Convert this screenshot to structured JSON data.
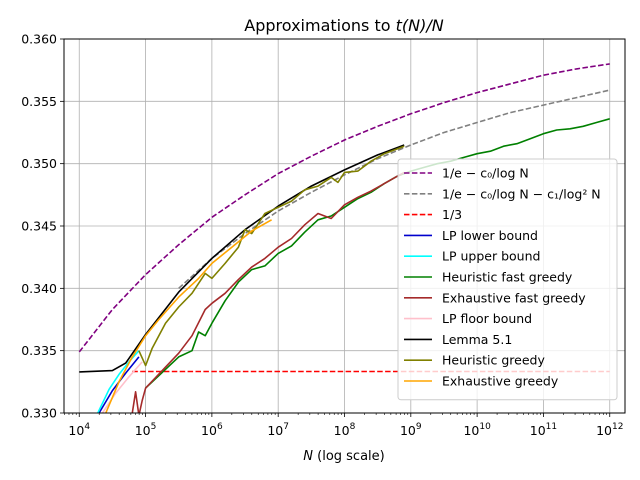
{
  "chart_data": {
    "type": "line",
    "title": "Approximations to t(N)/N",
    "title_parts": {
      "prefix": "Approximations to ",
      "math": "t(N)/N"
    },
    "xlabel": "N (log scale)",
    "xlabel_parts": {
      "math": "N",
      "rest": " (log scale)"
    },
    "ylabel": "",
    "x_scale": "log10",
    "x_exponents": [
      4,
      5,
      6,
      7,
      8,
      9,
      10,
      11,
      12
    ],
    "x_tick_base": "10",
    "xlim": [
      3.77,
      12.23
    ],
    "ylim": [
      0.33,
      0.36
    ],
    "y_ticks": [
      "0.330",
      "0.335",
      "0.340",
      "0.345",
      "0.350",
      "0.355",
      "0.360"
    ],
    "grid": true,
    "legend_position": "right",
    "series": [
      {
        "name": "1/e − c0/log N",
        "legend_label": "1/e − c₀/log N",
        "color": "#800080",
        "dash": "dashed",
        "x": [
          4,
          4.5,
          5,
          5.5,
          6,
          6.5,
          7,
          7.5,
          8,
          8.5,
          9,
          9.5,
          10,
          10.5,
          11,
          11.5,
          12
        ],
        "y": [
          0.3349,
          0.3383,
          0.3411,
          0.3435,
          0.3457,
          0.3475,
          0.3492,
          0.3506,
          0.3519,
          0.353,
          0.354,
          0.3549,
          0.3557,
          0.3564,
          0.3571,
          0.3576,
          0.358
        ]
      },
      {
        "name": "1/e − c0/log N − c1/log² N",
        "legend_label": "1/e − c₀/log N − c₁/log² N",
        "color": "#808080",
        "dash": "dashed",
        "x": [
          5.5,
          6,
          6.5,
          7,
          7.5,
          8,
          8.5,
          9,
          9.5,
          10,
          10.5,
          11,
          11.5,
          12
        ],
        "y": [
          0.34,
          0.3424,
          0.3444,
          0.3462,
          0.3477,
          0.3491,
          0.3504,
          0.3515,
          0.3525,
          0.3533,
          0.3541,
          0.3547,
          0.3553,
          0.3559
        ]
      },
      {
        "name": "1/3",
        "legend_label": "1/3",
        "color": "#ff0000",
        "dash": "dashed",
        "x": [
          4.8,
          12
        ],
        "y": [
          0.33333,
          0.33333
        ]
      },
      {
        "name": "LP lower bound",
        "legend_label": "LP lower bound",
        "color": "#0000cd",
        "dash": "solid",
        "x": [
          4.3,
          4.5,
          4.7,
          4.9
        ],
        "y": [
          0.33,
          0.3318,
          0.3332,
          0.3345
        ]
      },
      {
        "name": "LP upper bound",
        "legend_label": "LP upper bound",
        "color": "#00ffff",
        "dash": "solid",
        "x": [
          4.28,
          4.45,
          4.6,
          4.75,
          4.9
        ],
        "y": [
          0.33,
          0.3319,
          0.3331,
          0.3341,
          0.335
        ]
      },
      {
        "name": "Heuristic fast greedy",
        "legend_label": "Heuristic fast greedy",
        "color": "#008000",
        "dash": "solid",
        "x": [
          5.0,
          5.5,
          5.7,
          5.8,
          5.9,
          6.0,
          6.2,
          6.4,
          6.6,
          6.8,
          7.0,
          7.2,
          7.4,
          7.6,
          7.8,
          8.0,
          8.2,
          8.4,
          8.6,
          8.8,
          9.0,
          9.2,
          9.4,
          9.6,
          9.8,
          10.0,
          10.2,
          10.4,
          10.6,
          10.8,
          11.0,
          11.2,
          11.4,
          11.6,
          11.8,
          12.0
        ],
        "y": [
          0.332,
          0.3345,
          0.335,
          0.3365,
          0.3362,
          0.3372,
          0.339,
          0.3405,
          0.3415,
          0.3418,
          0.3428,
          0.3434,
          0.3445,
          0.3455,
          0.3458,
          0.3465,
          0.3472,
          0.3477,
          0.3484,
          0.349,
          0.3494,
          0.3497,
          0.35,
          0.3502,
          0.3505,
          0.3508,
          0.351,
          0.3514,
          0.3516,
          0.352,
          0.3524,
          0.3527,
          0.3528,
          0.353,
          0.3533,
          0.3536
        ]
      },
      {
        "name": "Exhaustive fast greedy",
        "legend_label": "Exhaustive fast greedy",
        "color": "#a52a2a",
        "dash": "solid",
        "x": [
          4.8,
          4.85,
          4.9,
          4.95,
          5.0,
          5.5,
          5.7,
          5.9,
          6.0,
          6.2,
          6.4,
          6.6,
          6.8,
          7.0,
          7.2,
          7.4,
          7.6,
          7.8,
          8.0,
          8.2,
          8.4,
          8.6,
          8.8,
          8.9
        ],
        "y": [
          0.33,
          0.3317,
          0.3298,
          0.331,
          0.332,
          0.3348,
          0.3362,
          0.3383,
          0.3388,
          0.3396,
          0.3407,
          0.3417,
          0.3424,
          0.3433,
          0.344,
          0.3451,
          0.346,
          0.3456,
          0.3467,
          0.3473,
          0.3478,
          0.3484,
          0.349,
          0.3493
        ]
      },
      {
        "name": "LP floor bound",
        "legend_label": "LP floor bound",
        "color": "#ffc0cb",
        "dash": "solid",
        "x": [
          4.35,
          4.55,
          4.75,
          4.95
        ],
        "y": [
          0.33,
          0.3316,
          0.3329,
          0.3341
        ]
      },
      {
        "name": "Lemma 5.1",
        "legend_label": "Lemma 5.1",
        "color": "#000000",
        "dash": "solid",
        "x": [
          4.0,
          4.5,
          4.7,
          5.0,
          5.5,
          6.0,
          6.5,
          7.0,
          7.5,
          8.0,
          8.5,
          8.9
        ],
        "y": [
          0.3333,
          0.3334,
          0.334,
          0.3363,
          0.3397,
          0.3424,
          0.3447,
          0.3466,
          0.3482,
          0.3495,
          0.3507,
          0.3515
        ]
      },
      {
        "name": "Heuristic greedy",
        "legend_label": "Heuristic greedy",
        "color": "#808000",
        "dash": "solid",
        "x": [
          4.9,
          5.0,
          5.1,
          5.3,
          5.5,
          5.7,
          5.9,
          6.0,
          6.2,
          6.4,
          6.5,
          6.6,
          6.8,
          7.0,
          7.2,
          7.4,
          7.6,
          7.8,
          7.9,
          8.0,
          8.2,
          8.4,
          8.6,
          8.8,
          8.9
        ],
        "y": [
          0.335,
          0.3338,
          0.3352,
          0.3372,
          0.3385,
          0.3396,
          0.3412,
          0.3408,
          0.342,
          0.3433,
          0.3447,
          0.3444,
          0.346,
          0.3465,
          0.347,
          0.3479,
          0.3482,
          0.3489,
          0.3485,
          0.3493,
          0.3494,
          0.3502,
          0.3508,
          0.3512,
          0.3514
        ]
      },
      {
        "name": "Exhaustive greedy",
        "legend_label": "Exhaustive greedy",
        "color": "#ffa500",
        "dash": "solid",
        "x": [
          4.4,
          4.6,
          4.8,
          5.0,
          5.2,
          5.5,
          5.8,
          6.0,
          6.3,
          6.6,
          6.9
        ],
        "y": [
          0.33,
          0.3325,
          0.3345,
          0.3362,
          0.3375,
          0.3393,
          0.3408,
          0.342,
          0.3433,
          0.3446,
          0.3455
        ]
      }
    ]
  }
}
